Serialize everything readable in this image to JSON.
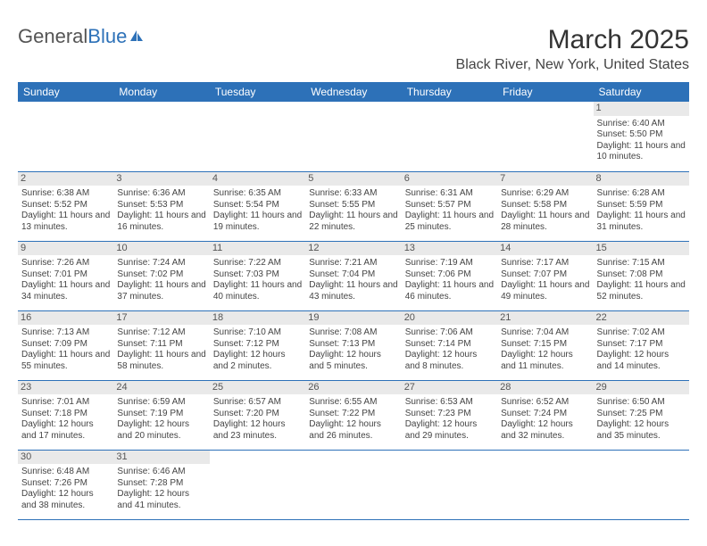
{
  "logo": {
    "part1": "General",
    "part2": "Blue"
  },
  "title": "March 2025",
  "location": "Black River, New York, United States",
  "header_bg": "#2d71b8",
  "header_fg": "#ffffff",
  "daynum_bg": "#e9e9e9",
  "rule_color": "#2d71b8",
  "weekdays": [
    "Sunday",
    "Monday",
    "Tuesday",
    "Wednesday",
    "Thursday",
    "Friday",
    "Saturday"
  ],
  "weeks": [
    [
      {
        "empty": true
      },
      {
        "empty": true
      },
      {
        "empty": true
      },
      {
        "empty": true
      },
      {
        "empty": true
      },
      {
        "empty": true
      },
      {
        "d": "1",
        "sunrise": "Sunrise: 6:40 AM",
        "sunset": "Sunset: 5:50 PM",
        "daylight": "Daylight: 11 hours and 10 minutes."
      }
    ],
    [
      {
        "d": "2",
        "sunrise": "Sunrise: 6:38 AM",
        "sunset": "Sunset: 5:52 PM",
        "daylight": "Daylight: 11 hours and 13 minutes."
      },
      {
        "d": "3",
        "sunrise": "Sunrise: 6:36 AM",
        "sunset": "Sunset: 5:53 PM",
        "daylight": "Daylight: 11 hours and 16 minutes."
      },
      {
        "d": "4",
        "sunrise": "Sunrise: 6:35 AM",
        "sunset": "Sunset: 5:54 PM",
        "daylight": "Daylight: 11 hours and 19 minutes."
      },
      {
        "d": "5",
        "sunrise": "Sunrise: 6:33 AM",
        "sunset": "Sunset: 5:55 PM",
        "daylight": "Daylight: 11 hours and 22 minutes."
      },
      {
        "d": "6",
        "sunrise": "Sunrise: 6:31 AM",
        "sunset": "Sunset: 5:57 PM",
        "daylight": "Daylight: 11 hours and 25 minutes."
      },
      {
        "d": "7",
        "sunrise": "Sunrise: 6:29 AM",
        "sunset": "Sunset: 5:58 PM",
        "daylight": "Daylight: 11 hours and 28 minutes."
      },
      {
        "d": "8",
        "sunrise": "Sunrise: 6:28 AM",
        "sunset": "Sunset: 5:59 PM",
        "daylight": "Daylight: 11 hours and 31 minutes."
      }
    ],
    [
      {
        "d": "9",
        "sunrise": "Sunrise: 7:26 AM",
        "sunset": "Sunset: 7:01 PM",
        "daylight": "Daylight: 11 hours and 34 minutes."
      },
      {
        "d": "10",
        "sunrise": "Sunrise: 7:24 AM",
        "sunset": "Sunset: 7:02 PM",
        "daylight": "Daylight: 11 hours and 37 minutes."
      },
      {
        "d": "11",
        "sunrise": "Sunrise: 7:22 AM",
        "sunset": "Sunset: 7:03 PM",
        "daylight": "Daylight: 11 hours and 40 minutes."
      },
      {
        "d": "12",
        "sunrise": "Sunrise: 7:21 AM",
        "sunset": "Sunset: 7:04 PM",
        "daylight": "Daylight: 11 hours and 43 minutes."
      },
      {
        "d": "13",
        "sunrise": "Sunrise: 7:19 AM",
        "sunset": "Sunset: 7:06 PM",
        "daylight": "Daylight: 11 hours and 46 minutes."
      },
      {
        "d": "14",
        "sunrise": "Sunrise: 7:17 AM",
        "sunset": "Sunset: 7:07 PM",
        "daylight": "Daylight: 11 hours and 49 minutes."
      },
      {
        "d": "15",
        "sunrise": "Sunrise: 7:15 AM",
        "sunset": "Sunset: 7:08 PM",
        "daylight": "Daylight: 11 hours and 52 minutes."
      }
    ],
    [
      {
        "d": "16",
        "sunrise": "Sunrise: 7:13 AM",
        "sunset": "Sunset: 7:09 PM",
        "daylight": "Daylight: 11 hours and 55 minutes."
      },
      {
        "d": "17",
        "sunrise": "Sunrise: 7:12 AM",
        "sunset": "Sunset: 7:11 PM",
        "daylight": "Daylight: 11 hours and 58 minutes."
      },
      {
        "d": "18",
        "sunrise": "Sunrise: 7:10 AM",
        "sunset": "Sunset: 7:12 PM",
        "daylight": "Daylight: 12 hours and 2 minutes."
      },
      {
        "d": "19",
        "sunrise": "Sunrise: 7:08 AM",
        "sunset": "Sunset: 7:13 PM",
        "daylight": "Daylight: 12 hours and 5 minutes."
      },
      {
        "d": "20",
        "sunrise": "Sunrise: 7:06 AM",
        "sunset": "Sunset: 7:14 PM",
        "daylight": "Daylight: 12 hours and 8 minutes."
      },
      {
        "d": "21",
        "sunrise": "Sunrise: 7:04 AM",
        "sunset": "Sunset: 7:15 PM",
        "daylight": "Daylight: 12 hours and 11 minutes."
      },
      {
        "d": "22",
        "sunrise": "Sunrise: 7:02 AM",
        "sunset": "Sunset: 7:17 PM",
        "daylight": "Daylight: 12 hours and 14 minutes."
      }
    ],
    [
      {
        "d": "23",
        "sunrise": "Sunrise: 7:01 AM",
        "sunset": "Sunset: 7:18 PM",
        "daylight": "Daylight: 12 hours and 17 minutes."
      },
      {
        "d": "24",
        "sunrise": "Sunrise: 6:59 AM",
        "sunset": "Sunset: 7:19 PM",
        "daylight": "Daylight: 12 hours and 20 minutes."
      },
      {
        "d": "25",
        "sunrise": "Sunrise: 6:57 AM",
        "sunset": "Sunset: 7:20 PM",
        "daylight": "Daylight: 12 hours and 23 minutes."
      },
      {
        "d": "26",
        "sunrise": "Sunrise: 6:55 AM",
        "sunset": "Sunset: 7:22 PM",
        "daylight": "Daylight: 12 hours and 26 minutes."
      },
      {
        "d": "27",
        "sunrise": "Sunrise: 6:53 AM",
        "sunset": "Sunset: 7:23 PM",
        "daylight": "Daylight: 12 hours and 29 minutes."
      },
      {
        "d": "28",
        "sunrise": "Sunrise: 6:52 AM",
        "sunset": "Sunset: 7:24 PM",
        "daylight": "Daylight: 12 hours and 32 minutes."
      },
      {
        "d": "29",
        "sunrise": "Sunrise: 6:50 AM",
        "sunset": "Sunset: 7:25 PM",
        "daylight": "Daylight: 12 hours and 35 minutes."
      }
    ],
    [
      {
        "d": "30",
        "sunrise": "Sunrise: 6:48 AM",
        "sunset": "Sunset: 7:26 PM",
        "daylight": "Daylight: 12 hours and 38 minutes."
      },
      {
        "d": "31",
        "sunrise": "Sunrise: 6:46 AM",
        "sunset": "Sunset: 7:28 PM",
        "daylight": "Daylight: 12 hours and 41 minutes."
      },
      {
        "empty": true
      },
      {
        "empty": true
      },
      {
        "empty": true
      },
      {
        "empty": true
      },
      {
        "empty": true
      }
    ]
  ]
}
